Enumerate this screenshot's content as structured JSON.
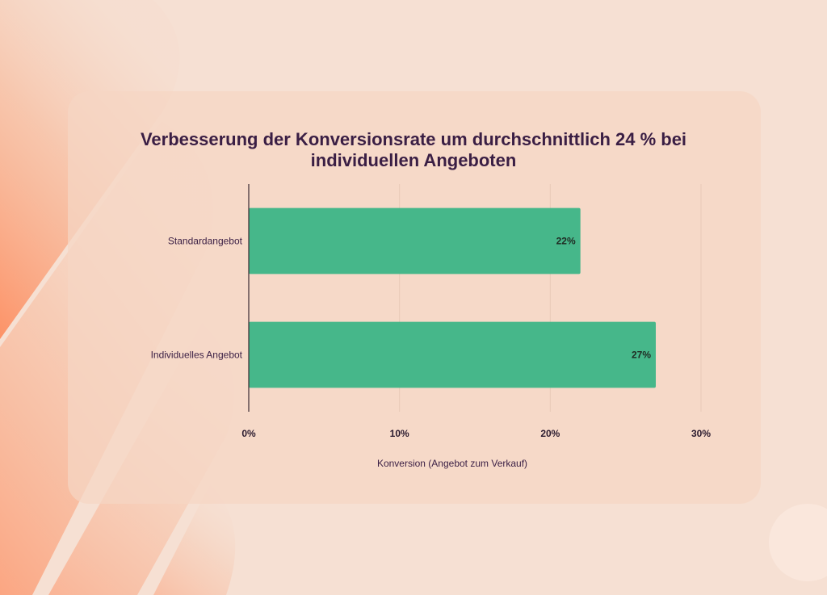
{
  "chart_data": {
    "type": "bar",
    "orientation": "horizontal",
    "title": "Verbesserung der Konversionsrate um durchschnittlich 24 % bei individuellen Angeboten",
    "categories": [
      "Standardangebot",
      "Individuelles Angebot"
    ],
    "values": [
      22,
      27
    ],
    "value_labels": [
      "22%",
      "27%"
    ],
    "xlabel": "Konversion (Angebot zum Verkauf)",
    "ylabel": "",
    "xlim": [
      0,
      30
    ],
    "xticks": [
      0,
      10,
      20,
      30
    ],
    "xtick_labels": [
      "0%",
      "10%",
      "20%",
      "30%"
    ],
    "grid": true,
    "bar_color": "#46b78a"
  },
  "colors": {
    "background": "#f6e0d3",
    "accent_orange": "#ff7a45",
    "title": "#3a1e44"
  }
}
